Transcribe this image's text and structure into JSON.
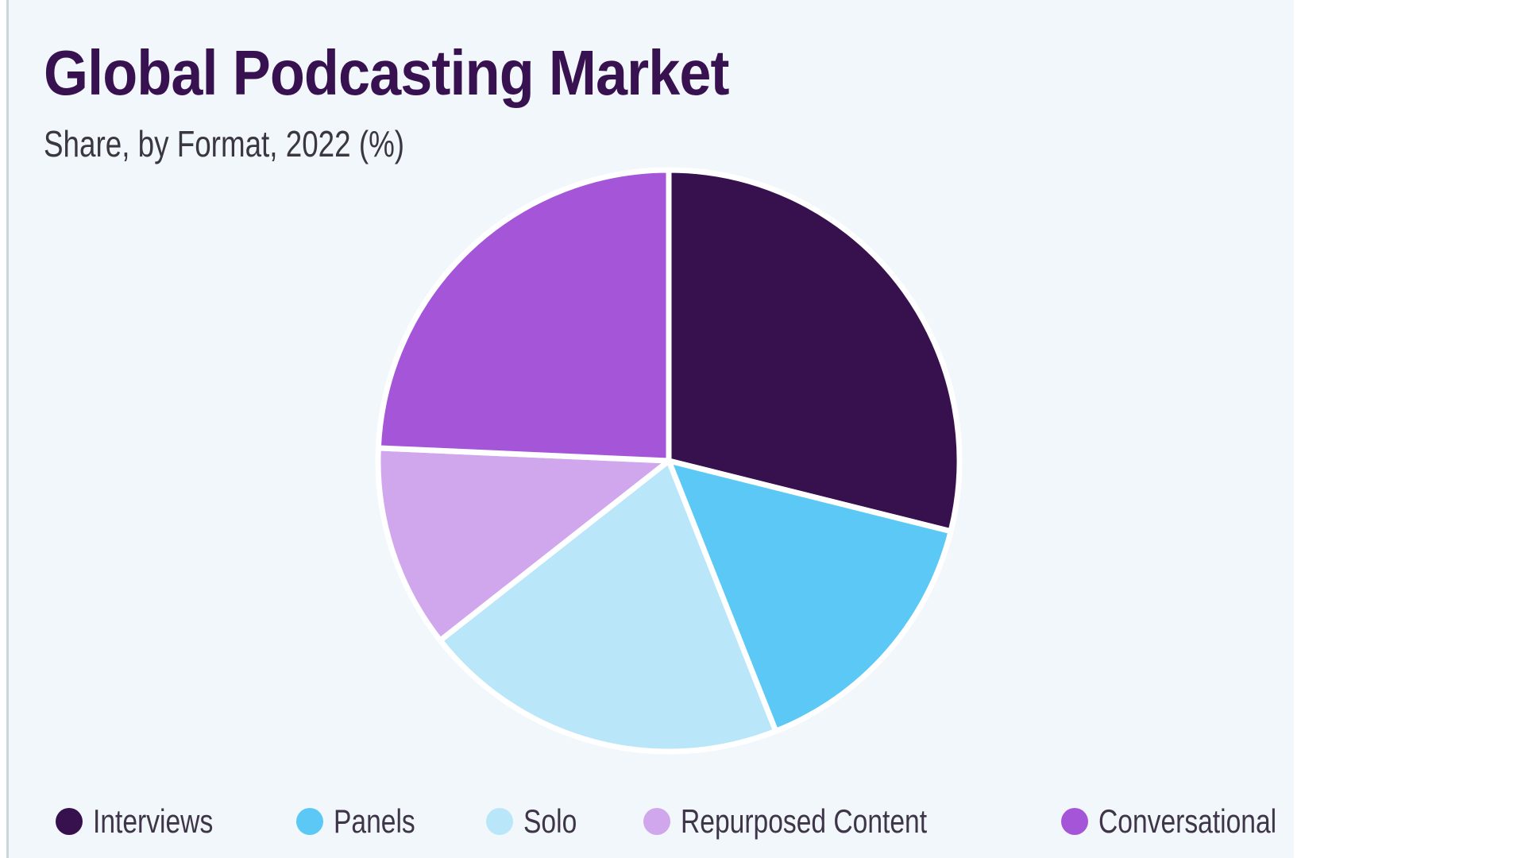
{
  "header": {
    "title": "Global Podcasting Market",
    "subtitle": "Share, by Format, 2022 (%)"
  },
  "chart_data": {
    "type": "pie",
    "title": "Global Podcasting Market",
    "subtitle": "Share, by Format, 2022 (%)",
    "unit": "%",
    "categories": [
      "Interviews",
      "Panels",
      "Solo",
      "Repurposed Content",
      "Conversational"
    ],
    "values": [
      28.9,
      15.1,
      20.4,
      11.3,
      24.3
    ],
    "colors": [
      "#37114D",
      "#5BC8F5",
      "#BAE6FA",
      "#D0A6EC",
      "#A455D8"
    ],
    "start_angle_deg": 0,
    "direction": "clockwise",
    "legend_position": "bottom",
    "value_labels_shown": false,
    "slice_gap_color": "#FFFFFF"
  },
  "colors": {
    "page_background": "#FFFFFF",
    "panel_background": "#F1F7FB",
    "panel_left_border": "#CBD5DC",
    "title_text": "#371150",
    "subtitle_text": "#3A3642",
    "legend_text": "#3E3548"
  }
}
